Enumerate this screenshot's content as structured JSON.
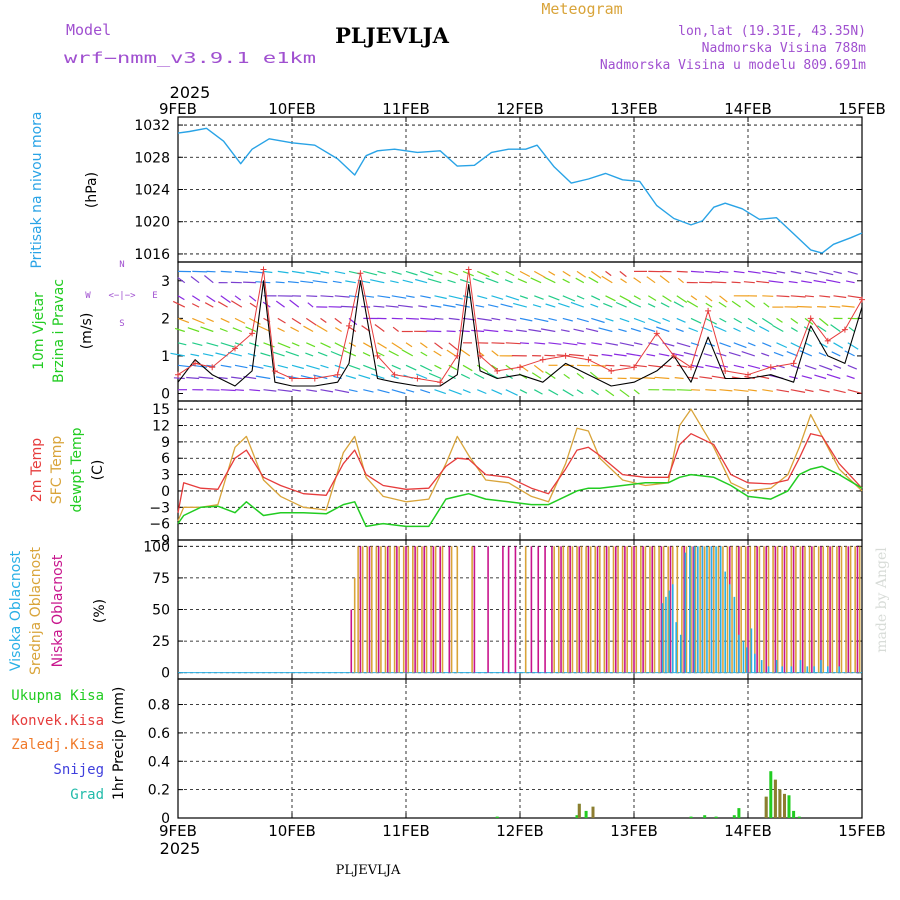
{
  "header": {
    "model_label": "Model",
    "model_name": "wrf−nmm_v3.9.1  e1km",
    "station": "PLJEVLJA",
    "product": "Meteogram",
    "coords": "lon,lat (19.31E, 43.35N)",
    "altitude": "Nadmorska Visina 788m",
    "model_altitude": "Nadmorska Visina u modelu 809.691m"
  },
  "footer": {
    "station": "PLJEVLJA",
    "watermark": "made by Angel"
  },
  "time_axis": {
    "year": "2025",
    "ticks": [
      "9FEB",
      "10FEB",
      "11FEB",
      "12FEB",
      "13FEB",
      "14FEB",
      "15FEB"
    ]
  },
  "colors": {
    "pressure": "#29a3e6",
    "temp2m": "#e63c3c",
    "sfc_temp": "#d9a43a",
    "dewpoint": "#22cc22",
    "cloud_high": "#29b0e6",
    "cloud_mid": "#d9a43a",
    "cloud_low": "#c8148c",
    "rain_total": "#22cc22",
    "rain_conv": "#e63c3c",
    "freezing": "#f07a2a",
    "snow": "#4040dd",
    "hail": "#22bbaa",
    "wind_label": "#22cc22",
    "compass": "#a050d0"
  },
  "chart_data": [
    {
      "type": "line",
      "title": "",
      "ylabel": "Pritisak na nivou mora",
      "unit": "(hPa)",
      "ylim": [
        1015,
        1033
      ],
      "yticks": [
        "1016",
        "1020",
        "1024",
        "1028",
        "1032"
      ],
      "x_days": [
        0,
        0.1,
        0.25,
        0.4,
        0.55,
        0.65,
        0.8,
        1.0,
        1.2,
        1.4,
        1.55,
        1.65,
        1.75,
        1.9,
        2.1,
        2.3,
        2.45,
        2.6,
        2.75,
        2.9,
        3.05,
        3.15,
        3.3,
        3.45,
        3.6,
        3.75,
        3.9,
        4.05,
        4.2,
        4.35,
        4.5,
        4.6,
        4.7,
        4.8,
        4.95,
        5.1,
        5.25,
        5.4,
        5.55,
        5.65,
        5.75,
        5.9,
        6.0
      ],
      "series": [
        {
          "values": [
            1031.0,
            1031.2,
            1031.6,
            1030.0,
            1027.2,
            1029.0,
            1030.3,
            1029.8,
            1029.5,
            1027.8,
            1025.8,
            1028.2,
            1028.8,
            1029.0,
            1028.6,
            1028.8,
            1026.9,
            1027.0,
            1028.6,
            1029.0,
            1029.0,
            1029.5,
            1026.8,
            1024.8,
            1025.3,
            1026.0,
            1025.2,
            1025.0,
            1022.0,
            1020.4,
            1019.6,
            1020.1,
            1021.8,
            1022.3,
            1021.6,
            1020.3,
            1020.5,
            1018.5,
            1016.5,
            1016.1,
            1017.2,
            1018.0,
            1018.6
          ]
        }
      ]
    },
    {
      "type": "line",
      "title": "",
      "ylabel_lines": [
        "10m Vjetar",
        "Brzina i Pravac"
      ],
      "unit": "(m/s)",
      "ylim": [
        -0.2,
        3.5
      ],
      "yticks": [
        "0",
        "1",
        "2",
        "3"
      ],
      "compass": {
        "north": "N",
        "south": "S",
        "east": "E",
        "west": "W",
        "arrows": "<−|−>"
      },
      "x_days": [
        0,
        0.15,
        0.3,
        0.5,
        0.65,
        0.75,
        0.85,
        1.0,
        1.2,
        1.4,
        1.5,
        1.6,
        1.75,
        1.9,
        2.1,
        2.3,
        2.45,
        2.55,
        2.65,
        2.8,
        3.0,
        3.2,
        3.4,
        3.6,
        3.8,
        4.0,
        4.2,
        4.35,
        4.5,
        4.65,
        4.8,
        5.0,
        5.2,
        5.4,
        5.55,
        5.7,
        5.85,
        6.0
      ],
      "series": [
        {
          "name": "speed",
          "values": [
            0.3,
            0.9,
            0.5,
            0.2,
            0.6,
            3.0,
            0.3,
            0.2,
            0.2,
            0.3,
            0.8,
            3.0,
            0.4,
            0.3,
            0.2,
            0.2,
            0.5,
            2.9,
            0.6,
            0.4,
            0.5,
            0.3,
            0.8,
            0.5,
            0.2,
            0.3,
            0.6,
            1.0,
            0.3,
            1.5,
            0.4,
            0.4,
            0.5,
            0.3,
            1.8,
            1.0,
            0.8,
            2.3
          ]
        },
        {
          "name": "gust",
          "values": [
            0.5,
            0.8,
            0.7,
            1.2,
            1.6,
            3.3,
            0.6,
            0.4,
            0.4,
            0.5,
            1.8,
            3.2,
            1.0,
            0.5,
            0.4,
            0.3,
            1.0,
            3.3,
            1.0,
            0.6,
            0.7,
            0.9,
            1.0,
            0.9,
            0.6,
            0.7,
            1.6,
            1.0,
            0.7,
            2.2,
            0.6,
            0.5,
            0.7,
            0.8,
            2.0,
            1.4,
            1.7,
            2.5
          ]
        }
      ],
      "barb_rows": [
        0.1,
        0.4,
        0.75,
        1.0,
        1.35,
        1.65,
        2.0,
        2.3,
        2.6,
        2.95,
        3.25,
        3.5
      ]
    },
    {
      "type": "line",
      "title": "",
      "ylabel_lines": [
        "2m Temp",
        "SFC Temp",
        "dewpt Temp"
      ],
      "unit": "(C)",
      "ylim": [
        -9,
        16.5
      ],
      "yticks": [
        "−9",
        "−6",
        "−3",
        "0",
        "3",
        "6",
        "9",
        "12",
        "15"
      ],
      "x_days": [
        0,
        0.05,
        0.2,
        0.35,
        0.5,
        0.6,
        0.75,
        0.9,
        1.1,
        1.3,
        1.45,
        1.55,
        1.65,
        1.8,
        2.0,
        2.2,
        2.35,
        2.45,
        2.55,
        2.7,
        2.9,
        3.1,
        3.25,
        3.4,
        3.5,
        3.6,
        3.7,
        3.9,
        4.1,
        4.3,
        4.4,
        4.5,
        4.7,
        4.85,
        5.0,
        5.2,
        5.35,
        5.45,
        5.55,
        5.65,
        5.8,
        6.0
      ],
      "series": [
        {
          "name": "2m Temp",
          "values": [
            -4.0,
            1.5,
            0.5,
            0.3,
            6.0,
            7.5,
            2.5,
            1.0,
            -0.5,
            -0.8,
            5.0,
            7.5,
            3.0,
            1.0,
            0.3,
            0.5,
            4.5,
            6.0,
            5.8,
            3.0,
            2.5,
            0.5,
            -0.5,
            4.0,
            7.5,
            8.0,
            6.5,
            3.0,
            2.5,
            2.5,
            8.5,
            10.5,
            8.5,
            3.0,
            1.5,
            1.3,
            2.0,
            6.0,
            10.5,
            10.0,
            5.0,
            0.5
          ]
        },
        {
          "name": "SFC Temp",
          "values": [
            -5.5,
            -3.0,
            -3.0,
            -2.5,
            8.0,
            10.0,
            2.0,
            -1.0,
            -3.0,
            -3.5,
            7.0,
            10.0,
            2.5,
            -1.0,
            -2.0,
            -1.5,
            5.0,
            10.0,
            6.5,
            2.0,
            1.5,
            -1.0,
            -2.0,
            5.0,
            11.5,
            11.0,
            6.0,
            2.0,
            1.0,
            1.5,
            12.0,
            15.0,
            8.0,
            1.5,
            0.0,
            0.5,
            3.0,
            8.0,
            14.0,
            10.0,
            4.0,
            0.0
          ]
        },
        {
          "name": "dewpt Temp",
          "values": [
            -6.0,
            -4.5,
            -3.0,
            -2.8,
            -4.0,
            -2.0,
            -4.5,
            -4.0,
            -4.0,
            -4.2,
            -2.5,
            -2.0,
            -6.5,
            -6.0,
            -6.5,
            -6.5,
            -1.5,
            -1.0,
            -0.5,
            -1.5,
            -2.0,
            -2.5,
            -2.5,
            -1.0,
            0.0,
            0.5,
            0.5,
            1.0,
            1.5,
            1.5,
            2.5,
            3.0,
            2.5,
            1.0,
            -1.0,
            -1.5,
            0.0,
            3.0,
            4.0,
            4.5,
            3.0,
            0.5
          ]
        }
      ]
    },
    {
      "type": "bar",
      "title": "",
      "ylabel_lines": [
        "Visoka Oblacnost",
        "Srednja Oblacnost",
        "Niska Oblacnost"
      ],
      "unit": "(%)",
      "ylim": [
        -5,
        105
      ],
      "yticks": [
        "0",
        "25",
        "50",
        "75",
        "100"
      ],
      "bar_series": [
        {
          "name": "Srednja Oblacnost",
          "x_days": [
            1.55,
            1.58,
            1.62,
            1.66,
            1.7,
            1.74,
            1.78,
            1.82,
            1.86,
            1.9,
            1.94,
            1.98,
            2.02,
            2.06,
            2.1,
            2.14,
            2.18,
            2.22,
            2.26,
            2.32,
            2.4,
            2.45,
            2.58,
            3.05,
            3.3,
            3.34,
            3.38,
            3.42,
            3.46,
            3.5,
            3.54,
            3.58,
            3.62,
            3.66,
            3.7,
            3.74,
            3.78,
            3.82,
            3.86,
            3.9,
            3.94,
            3.98,
            4.02,
            4.06,
            4.1,
            4.14,
            4.18,
            4.22,
            4.26,
            4.3,
            4.34,
            4.38,
            4.42,
            4.46,
            4.5,
            4.54,
            4.58,
            4.62,
            4.66,
            4.7,
            4.74,
            4.78,
            4.82,
            4.86,
            4.9,
            4.94,
            4.98,
            5.02,
            5.06,
            5.1,
            5.14,
            5.18,
            5.22,
            5.26,
            5.3,
            5.34,
            5.38,
            5.42,
            5.46,
            5.5,
            5.54,
            5.58,
            5.62,
            5.66,
            5.7,
            5.74,
            5.78,
            5.82,
            5.86,
            5.9,
            5.94,
            5.98
          ],
          "values": [
            75,
            100,
            100,
            100,
            100,
            100,
            100,
            100,
            100,
            100,
            100,
            100,
            100,
            100,
            100,
            100,
            100,
            100,
            100,
            100,
            100,
            100,
            100,
            100,
            100,
            100,
            100,
            100,
            100,
            100,
            100,
            100,
            100,
            100,
            100,
            100,
            100,
            100,
            100,
            100,
            100,
            100,
            100,
            100,
            100,
            100,
            100,
            100,
            100,
            100,
            100,
            100,
            100,
            100,
            100,
            100,
            100,
            100,
            100,
            100,
            100,
            100,
            100,
            100,
            100,
            100,
            100,
            100,
            100,
            100,
            100,
            100,
            100,
            100,
            100,
            100,
            100,
            100,
            100,
            100,
            100,
            100,
            100,
            100,
            100,
            100,
            100,
            100,
            100,
            100,
            100,
            100
          ]
        },
        {
          "name": "Niska Oblacnost",
          "x_days": [
            1.52,
            1.6,
            1.68,
            1.76,
            1.84,
            1.92,
            2.0,
            2.08,
            2.16,
            2.24,
            2.3,
            2.38,
            2.6,
            2.72,
            2.85,
            2.9,
            2.96,
            3.1,
            3.16,
            3.22,
            3.28,
            3.36,
            3.44,
            3.52,
            3.6,
            3.68,
            3.76,
            3.84,
            3.92,
            4.0,
            4.08,
            4.16,
            4.24,
            4.32,
            4.44,
            4.52,
            4.6,
            4.68,
            4.76,
            4.84,
            4.92,
            5.0,
            5.08,
            5.16,
            5.24,
            5.32,
            5.4,
            5.48,
            5.56,
            5.64,
            5.72,
            5.8,
            5.88,
            5.96
          ],
          "values": [
            50,
            100,
            100,
            100,
            100,
            100,
            100,
            100,
            100,
            100,
            100,
            100,
            100,
            100,
            100,
            100,
            100,
            100,
            100,
            100,
            100,
            100,
            100,
            100,
            100,
            100,
            100,
            100,
            100,
            100,
            100,
            100,
            100,
            100,
            100,
            100,
            100,
            100,
            100,
            100,
            100,
            100,
            100,
            100,
            100,
            100,
            100,
            100,
            100,
            100,
            100,
            100,
            100,
            100
          ]
        },
        {
          "name": "Visoka Oblacnost",
          "x_days": [
            4.25,
            4.28,
            4.31,
            4.34,
            4.37,
            4.41,
            4.45,
            4.49,
            4.53,
            4.56,
            4.6,
            4.64,
            4.68,
            4.72,
            4.76,
            4.8,
            4.84,
            4.88,
            4.92,
            4.96,
            4.99,
            5.03,
            5.06,
            5.12,
            5.18,
            5.25,
            5.3,
            5.38,
            5.46,
            5.52,
            5.58,
            5.64,
            5.7,
            5.8
          ],
          "values": [
            55,
            60,
            65,
            70,
            40,
            30,
            95,
            100,
            100,
            100,
            100,
            100,
            100,
            100,
            100,
            80,
            70,
            60,
            30,
            25,
            20,
            35,
            15,
            10,
            5,
            10,
            5,
            5,
            10,
            5,
            5,
            10,
            5,
            5
          ]
        }
      ]
    },
    {
      "type": "bar",
      "title": "",
      "ylabel": "1hr Precip",
      "unit": "(mm)",
      "ylim": [
        0,
        0.98
      ],
      "yticks": [
        "0",
        "0.2",
        "0.4",
        "0.6",
        "0.8"
      ],
      "legend": [
        "Ukupna Kisa",
        "Konvek.Kisa",
        "Zaledj.Kisa",
        "Snijeg",
        "Grad"
      ],
      "bar_series": [
        {
          "name": "Ukupna Kisa",
          "x_days": [
            2.8,
            3.5,
            3.52,
            3.58,
            3.64,
            4.5,
            4.62,
            4.72,
            4.88,
            4.92,
            5.16,
            5.2,
            5.24,
            5.28,
            5.32,
            5.36,
            5.4,
            5.45
          ],
          "values": [
            0.01,
            0.02,
            0.1,
            0.05,
            0.08,
            0.01,
            0.02,
            0.01,
            0.02,
            0.07,
            0.15,
            0.33,
            0.27,
            0.2,
            0.17,
            0.16,
            0.05,
            0.01
          ]
        },
        {
          "name": "Konvek.Kisa",
          "x_days": [
            3.52,
            3.64,
            5.16,
            5.24,
            5.28,
            5.32
          ],
          "values": [
            0.1,
            0.08,
            0.15,
            0.27,
            0.2,
            0.17
          ]
        }
      ]
    }
  ]
}
